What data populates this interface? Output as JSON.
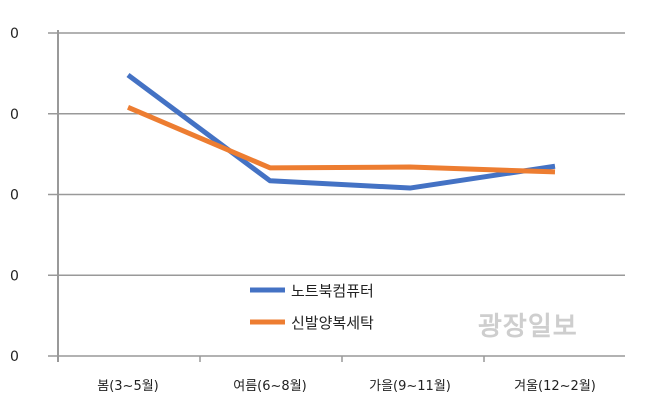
{
  "chart_data": {
    "type": "line",
    "categories": [
      "봄(3~5월)",
      "여름(6~8월)",
      "가을(9~11월)",
      "겨울(12~2월)"
    ],
    "yticks": [
      "0",
      "0",
      "0",
      "0",
      "0"
    ],
    "ylim": [
      0,
      4
    ],
    "grid": true,
    "legend_placement": "center",
    "series": [
      {
        "name": "노트북컴퓨터",
        "color": "#4472C4",
        "values": [
          3.48,
          2.17,
          2.08,
          2.35
        ]
      },
      {
        "name": "신발양복세탁",
        "color": "#ED7D31",
        "values": [
          3.08,
          2.33,
          2.34,
          2.28
        ]
      }
    ]
  },
  "watermark": "광장일보"
}
